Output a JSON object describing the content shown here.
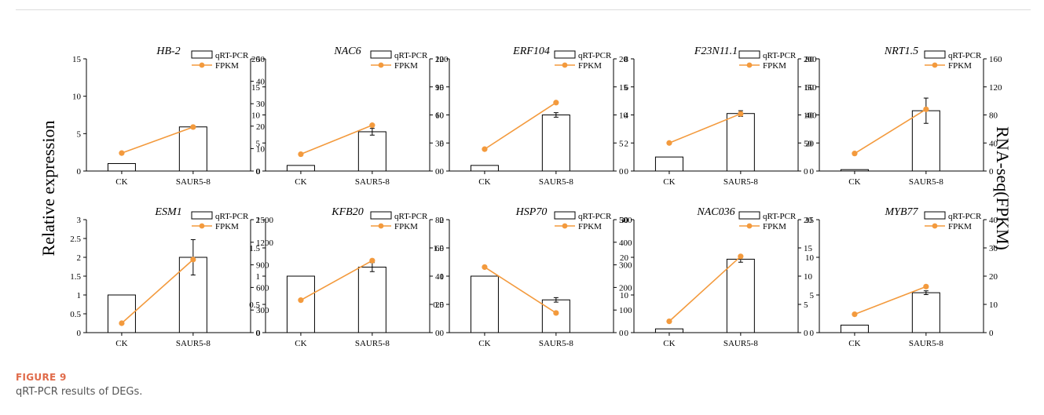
{
  "figure": {
    "label": "FIGURE 9",
    "caption": "qRT-PCR results of DEGs."
  },
  "labels": {
    "left": "Relative expression",
    "right": "RNA-seq(FPKM)"
  },
  "colors": {
    "line": "#f39a3d",
    "bar_fill": "#ffffff",
    "bar_stroke": "#000000"
  },
  "chart_data": [
    {
      "type": "bar",
      "title": "HB-2",
      "categories": [
        "CK",
        "SAUR5-8"
      ],
      "series": [
        {
          "name": "qRT-PCR",
          "values": [
            1,
            5.9
          ],
          "errors": [
            0,
            0.1
          ]
        },
        {
          "name": "FPKM",
          "values": [
            8,
            19.6
          ]
        }
      ],
      "y_left": {
        "lim": [
          0,
          15
        ],
        "ticks": [
          0,
          5,
          10,
          15
        ]
      },
      "y_right": {
        "lim": [
          0,
          50
        ],
        "ticks": [
          0,
          10,
          20,
          30,
          40,
          50
        ]
      },
      "legend": "top-right"
    },
    {
      "type": "bar",
      "title": "NAC6",
      "categories": [
        "CK",
        "SAUR5-8"
      ],
      "series": [
        {
          "name": "qRT-PCR",
          "values": [
            1,
            7
          ],
          "errors": [
            0,
            0.6
          ]
        },
        {
          "name": "FPKM",
          "values": [
            18,
            49
          ]
        }
      ],
      "y_left": {
        "lim": [
          0,
          20
        ],
        "ticks": [
          0,
          5,
          10,
          15,
          20
        ]
      },
      "y_right": {
        "lim": [
          0,
          120
        ],
        "ticks": [
          0,
          30,
          60,
          90,
          120
        ]
      },
      "legend": "top-right"
    },
    {
      "type": "bar",
      "title": "ERF104",
      "categories": [
        "CK",
        "SAUR5-8"
      ],
      "series": [
        {
          "name": "qRT-PCR",
          "values": [
            1,
            10
          ],
          "errors": [
            0,
            0.4
          ]
        },
        {
          "name": "FPKM",
          "values": [
            3.9,
            12.2
          ]
        }
      ],
      "y_left": {
        "lim": [
          0,
          20
        ],
        "ticks": [
          0,
          5,
          10,
          15,
          20
        ]
      },
      "y_right": {
        "lim": [
          0,
          20
        ],
        "ticks": [
          0,
          5,
          10,
          15,
          20
        ]
      },
      "legend": "top-right"
    },
    {
      "type": "bar",
      "title": "F23N11.1",
      "categories": [
        "CK",
        "SAUR5-8"
      ],
      "series": [
        {
          "name": "qRT-PCR",
          "values": [
            1,
            4.1
          ],
          "errors": [
            0,
            0.2
          ]
        },
        {
          "name": "FPKM",
          "values": [
            50,
            102
          ]
        }
      ],
      "y_left": {
        "lim": [
          0,
          8
        ],
        "ticks": [
          0,
          2,
          4,
          6,
          8
        ]
      },
      "y_right": {
        "lim": [
          0,
          200
        ],
        "ticks": [
          0,
          50,
          100,
          150,
          200
        ]
      },
      "legend": "top-right"
    },
    {
      "type": "bar",
      "title": "NRT1.5",
      "categories": [
        "CK",
        "SAUR5-8"
      ],
      "series": [
        {
          "name": "qRT-PCR",
          "values": [
            1,
            43
          ],
          "errors": [
            0,
            9
          ]
        },
        {
          "name": "FPKM",
          "values": [
            25,
            88
          ]
        }
      ],
      "y_left": {
        "lim": [
          0,
          80
        ],
        "ticks": [
          0,
          20,
          40,
          60,
          80
        ]
      },
      "y_right": {
        "lim": [
          0,
          160
        ],
        "ticks": [
          0,
          40,
          80,
          120,
          160
        ]
      },
      "legend": "top-right"
    },
    {
      "type": "bar",
      "title": "ESM1",
      "categories": [
        "CK",
        "SAUR5-8"
      ],
      "series": [
        {
          "name": "qRT-PCR",
          "values": [
            1,
            2
          ],
          "errors": [
            0,
            0.47
          ]
        },
        {
          "name": "FPKM",
          "values": [
            125,
            970
          ]
        }
      ],
      "y_left": {
        "lim": [
          0,
          3
        ],
        "ticks": [
          0,
          0.5,
          1,
          1.5,
          2,
          2.5,
          3
        ]
      },
      "y_right": {
        "lim": [
          0,
          1500
        ],
        "ticks": [
          0,
          300,
          600,
          900,
          1200,
          1500
        ]
      },
      "legend": "top-right"
    },
    {
      "type": "bar",
      "title": "KFB20",
      "categories": [
        "CK",
        "SAUR5-8"
      ],
      "series": [
        {
          "name": "qRT-PCR",
          "values": [
            1,
            1.16
          ],
          "errors": [
            0,
            0.08
          ]
        },
        {
          "name": "FPKM",
          "values": [
            23,
            51
          ]
        }
      ],
      "y_left": {
        "lim": [
          0,
          2
        ],
        "ticks": [
          0,
          0.5,
          1,
          1.5,
          2
        ]
      },
      "y_right": {
        "lim": [
          0,
          80
        ],
        "ticks": [
          0,
          20,
          40,
          60,
          80
        ]
      },
      "legend": "top-right"
    },
    {
      "type": "bar",
      "title": "HSP70",
      "categories": [
        "CK",
        "SAUR5-8"
      ],
      "series": [
        {
          "name": "qRT-PCR",
          "values": [
            1,
            0.58
          ],
          "errors": [
            0,
            0.04
          ]
        },
        {
          "name": "FPKM",
          "values": [
            290,
            87
          ]
        }
      ],
      "y_left": {
        "lim": [
          0,
          2
        ],
        "ticks": [
          0,
          0.5,
          1,
          1.5,
          2
        ]
      },
      "y_right": {
        "lim": [
          0,
          500
        ],
        "ticks": [
          0,
          100,
          200,
          300,
          400,
          500
        ]
      },
      "legend": "top-right"
    },
    {
      "type": "bar",
      "title": "NAC036",
      "categories": [
        "CK",
        "SAUR5-8"
      ],
      "series": [
        {
          "name": "qRT-PCR",
          "values": [
            1,
            19.5
          ],
          "errors": [
            0,
            0.8
          ]
        },
        {
          "name": "FPKM",
          "values": [
            2,
            13.5
          ]
        }
      ],
      "y_left": {
        "lim": [
          0,
          30
        ],
        "ticks": [
          0,
          10,
          20,
          30
        ]
      },
      "y_right": {
        "lim": [
          0,
          20
        ],
        "ticks": [
          0,
          5,
          10,
          15,
          20
        ]
      },
      "legend": "top-right"
    },
    {
      "type": "bar",
      "title": "MYB77",
      "categories": [
        "CK",
        "SAUR5-8"
      ],
      "series": [
        {
          "name": "qRT-PCR",
          "values": [
            1,
            5.3
          ],
          "errors": [
            0,
            0.25
          ]
        },
        {
          "name": "FPKM",
          "values": [
            6.5,
            16.3
          ]
        }
      ],
      "y_left": {
        "lim": [
          0,
          15
        ],
        "ticks": [
          0,
          5,
          10,
          15
        ]
      },
      "y_right": {
        "lim": [
          0,
          40
        ],
        "ticks": [
          0,
          10,
          20,
          30,
          40
        ]
      },
      "legend": "top-right"
    }
  ]
}
